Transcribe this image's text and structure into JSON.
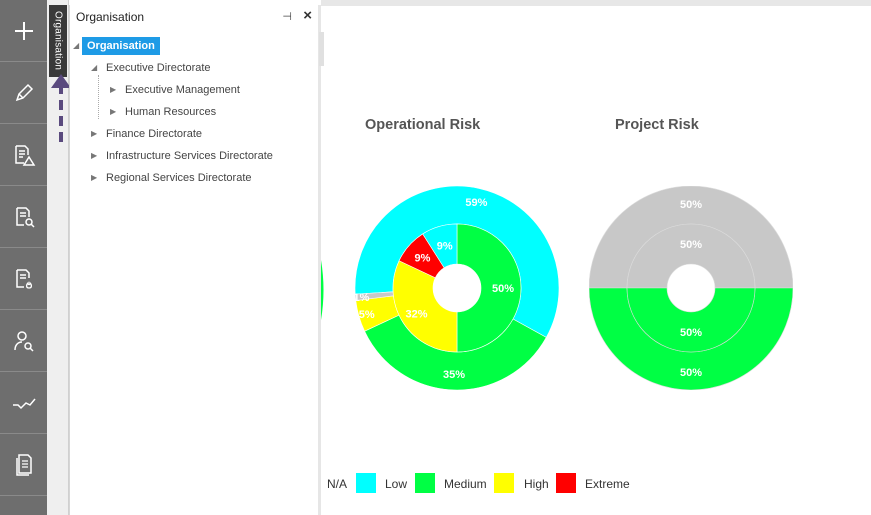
{
  "sidebar": {
    "items": [
      {
        "icon": "plus-icon"
      },
      {
        "icon": "pencil-icon"
      },
      {
        "icon": "document-warning-icon"
      },
      {
        "icon": "document-search-icon"
      },
      {
        "icon": "document-fire-icon"
      },
      {
        "icon": "user-search-icon"
      },
      {
        "icon": "trend-icon"
      },
      {
        "icon": "documents-icon"
      }
    ]
  },
  "vertical_tab": {
    "label": "Organisation"
  },
  "panel": {
    "title": "Organisation",
    "tree": {
      "root": "Organisation",
      "nodes": [
        {
          "label": "Executive Directorate",
          "expanded": true
        },
        {
          "label": "Executive Management"
        },
        {
          "label": "Human Resources"
        },
        {
          "label": "Finance Directorate"
        },
        {
          "label": "Infrastructure Services Directorate"
        },
        {
          "label": "Regional Services Directorate"
        }
      ]
    }
  },
  "colors": {
    "na": "#c8c8c8",
    "low": "#00ffff",
    "medium": "#00ff44",
    "high": "#ffff00",
    "extreme": "#ff0000",
    "accent": "#1e9be6",
    "annotation_arrow": "#5a4a7e"
  },
  "chart_data": [
    {
      "type": "pie",
      "title": "Operational Risk",
      "series": [
        {
          "ring": "outer",
          "slices": [
            {
              "category": "Low",
              "value": 59,
              "label": "59%"
            },
            {
              "category": "Medium",
              "value": 35,
              "label": "35%"
            },
            {
              "category": "High",
              "value": 5,
              "label": "5%"
            },
            {
              "category": "N/A",
              "value": 1,
              "label": "1%"
            }
          ]
        },
        {
          "ring": "inner",
          "slices": [
            {
              "category": "Medium",
              "value": 50,
              "label": "50%"
            },
            {
              "category": "High",
              "value": 32,
              "label": "32%"
            },
            {
              "category": "Extreme",
              "value": 9,
              "label": "9%"
            },
            {
              "category": "Low",
              "value": 9,
              "label": "9%"
            }
          ]
        }
      ]
    },
    {
      "type": "pie",
      "title": "Project Risk",
      "series": [
        {
          "ring": "outer",
          "slices": [
            {
              "category": "N/A",
              "value": 50,
              "label": "50%"
            },
            {
              "category": "Medium",
              "value": 50,
              "label": "50%"
            }
          ]
        },
        {
          "ring": "inner",
          "slices": [
            {
              "category": "N/A",
              "value": 50,
              "label": "50%"
            },
            {
              "category": "Medium",
              "value": 50,
              "label": "50%"
            }
          ]
        }
      ]
    }
  ],
  "legend": [
    {
      "label": "N/A",
      "key": "na"
    },
    {
      "label": "Low",
      "key": "low"
    },
    {
      "label": "Medium",
      "key": "medium"
    },
    {
      "label": "High",
      "key": "high"
    },
    {
      "label": "Extreme",
      "key": "extreme"
    }
  ]
}
